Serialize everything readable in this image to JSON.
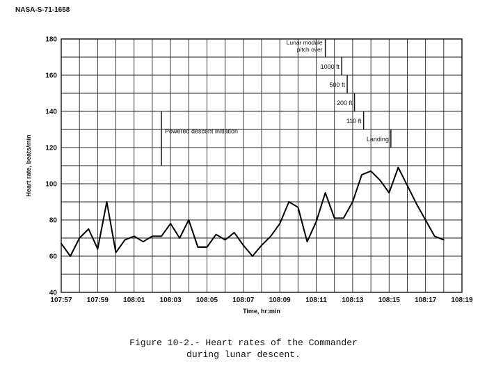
{
  "figure_id": "NASA-S-71-1658",
  "caption_line1": "Figure 10-2.- Heart rates of the Commander",
  "caption_line2": "during lunar descent.",
  "chart_data": {
    "type": "line",
    "xlabel": "Time, hr:min",
    "ylabel": "Heart rate, beats/min",
    "xlim": [
      0,
      22
    ],
    "ylim": [
      40,
      180
    ],
    "x_tick_labels": [
      "107:57",
      "107:59",
      "108:01",
      "108:03",
      "108:05",
      "108:07",
      "108:09",
      "108:11",
      "108:13",
      "108:15",
      "108:17",
      "108:19"
    ],
    "y_ticks": [
      40,
      60,
      80,
      100,
      120,
      140,
      160,
      180
    ],
    "grid": true,
    "series": [
      {
        "x": [
          0,
          0.5,
          1,
          1.5,
          2,
          2.5,
          3,
          3.5,
          4,
          4.5,
          5,
          5.5,
          6,
          6.5,
          7,
          7.5,
          8,
          8.5,
          9,
          9.5,
          10,
          10.5,
          11,
          11.5,
          12,
          12.5,
          13,
          13.5,
          14,
          14.5,
          15,
          15.5,
          16,
          16.5,
          17,
          17.5,
          18,
          18.5,
          19,
          19.5,
          20,
          20.5,
          21
        ],
        "values": [
          67,
          60,
          70,
          75,
          64,
          90,
          62,
          69,
          71,
          68,
          71,
          71,
          78,
          70,
          80,
          65,
          65,
          72,
          69,
          73,
          66,
          60,
          66,
          71,
          78,
          90,
          87,
          68,
          79,
          95,
          81,
          81,
          90,
          105,
          107,
          102,
          95,
          109,
          99,
          89,
          80,
          71,
          69
        ]
      }
    ],
    "annotations": [
      {
        "label": "Powered descent initiation",
        "x": 5.5,
        "y_top": 140,
        "y_bottom": 110
      },
      {
        "label": "Lunar module pitch over",
        "x": 14.5,
        "y_top": 180,
        "y_bottom": 170
      },
      {
        "label": "1000 ft",
        "x": 15.4,
        "y_top": 170,
        "y_bottom": 160
      },
      {
        "label": "500 ft",
        "x": 15.7,
        "y_top": 160,
        "y_bottom": 150
      },
      {
        "label": "200 ft",
        "x": 16.1,
        "y_top": 150,
        "y_bottom": 140
      },
      {
        "label": "110 ft",
        "x": 16.6,
        "y_top": 140,
        "y_bottom": 130
      },
      {
        "label": "Landing",
        "x": 18.1,
        "y_top": 130,
        "y_bottom": 120
      }
    ]
  }
}
